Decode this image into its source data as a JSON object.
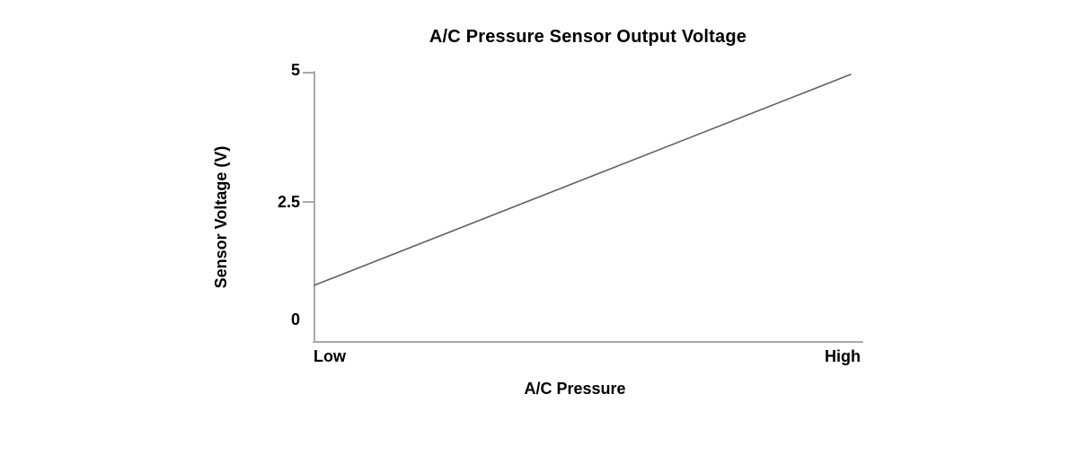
{
  "chart_data": {
    "type": "line",
    "title": "A/C Pressure Sensor Output Voltage",
    "xlabel": "A/C Pressure",
    "ylabel": "Sensor Voltage (V)",
    "x_categories": [
      "Low",
      "High"
    ],
    "x_tick_labels": [
      "Low",
      "High"
    ],
    "y_ticks": [
      5,
      2.5,
      0
    ],
    "y_tick_labels": [
      "5",
      "2.5",
      "0"
    ],
    "ylim": [
      0,
      5
    ],
    "grid": false,
    "legend": false,
    "series": [
      {
        "x": [
          "Low",
          "High"
        ],
        "values": [
          0.9,
          4.95
        ]
      }
    ],
    "colors": {
      "line": "#616161",
      "axis": "#a9a9a9",
      "text": "#000000"
    }
  }
}
